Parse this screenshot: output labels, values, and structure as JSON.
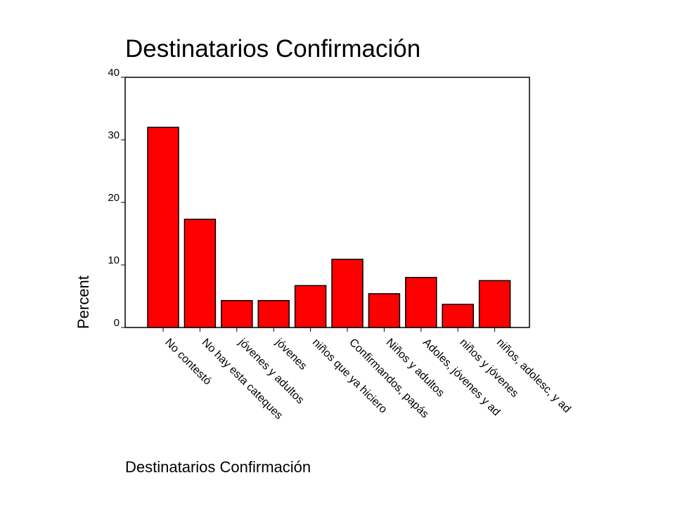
{
  "chart_data": {
    "type": "bar",
    "title": "Destinatarios Confirmación",
    "xlabel": "Destinatarios Confirmación",
    "ylabel": "Percent",
    "categories": [
      "No contestó",
      "No hay esta cateques",
      "jóvenes y adultos",
      "jóvenes",
      "niños que ya hiciero",
      "Confirmandos, papás",
      "Niños y adultos",
      "Adoles, jóvenes y ad",
      "niños y jóvenes",
      "niños, adolesc, y ad"
    ],
    "values": [
      32.0,
      17.3,
      4.3,
      4.3,
      6.7,
      10.9,
      5.4,
      8.0,
      3.7,
      7.5
    ],
    "ylim": [
      0,
      40
    ],
    "yticks": [
      0,
      10,
      20,
      30,
      40
    ],
    "bar_color": "#ff0000",
    "grid": false,
    "legend": "none"
  }
}
